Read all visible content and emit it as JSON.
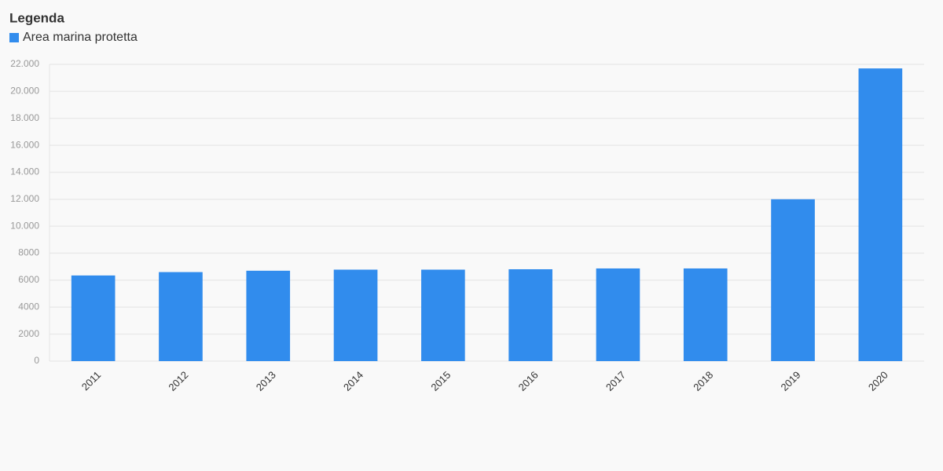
{
  "chart_data": {
    "type": "bar",
    "legend_title": "Legenda",
    "categories": [
      "2011",
      "2012",
      "2013",
      "2014",
      "2015",
      "2016",
      "2017",
      "2018",
      "2019",
      "2020"
    ],
    "series": [
      {
        "name": "Area marina protetta",
        "color": "#318ced",
        "values": [
          6350,
          6600,
          6700,
          6780,
          6780,
          6810,
          6870,
          6870,
          12000,
          21700
        ]
      }
    ],
    "ylim": [
      0,
      22000
    ],
    "yticks": [
      0,
      2000,
      4000,
      6000,
      8000,
      {
        "value": 10000,
        "label": "10.000"
      },
      {
        "value": 12000,
        "label": "12.000"
      },
      {
        "value": 14000,
        "label": "14.000"
      },
      {
        "value": 16000,
        "label": "16.000"
      },
      {
        "value": 18000,
        "label": "18.000"
      },
      {
        "value": 20000,
        "label": "20.000"
      },
      {
        "value": 22000,
        "label": "22.000"
      }
    ],
    "grid": true,
    "legend_position": "top-left"
  }
}
